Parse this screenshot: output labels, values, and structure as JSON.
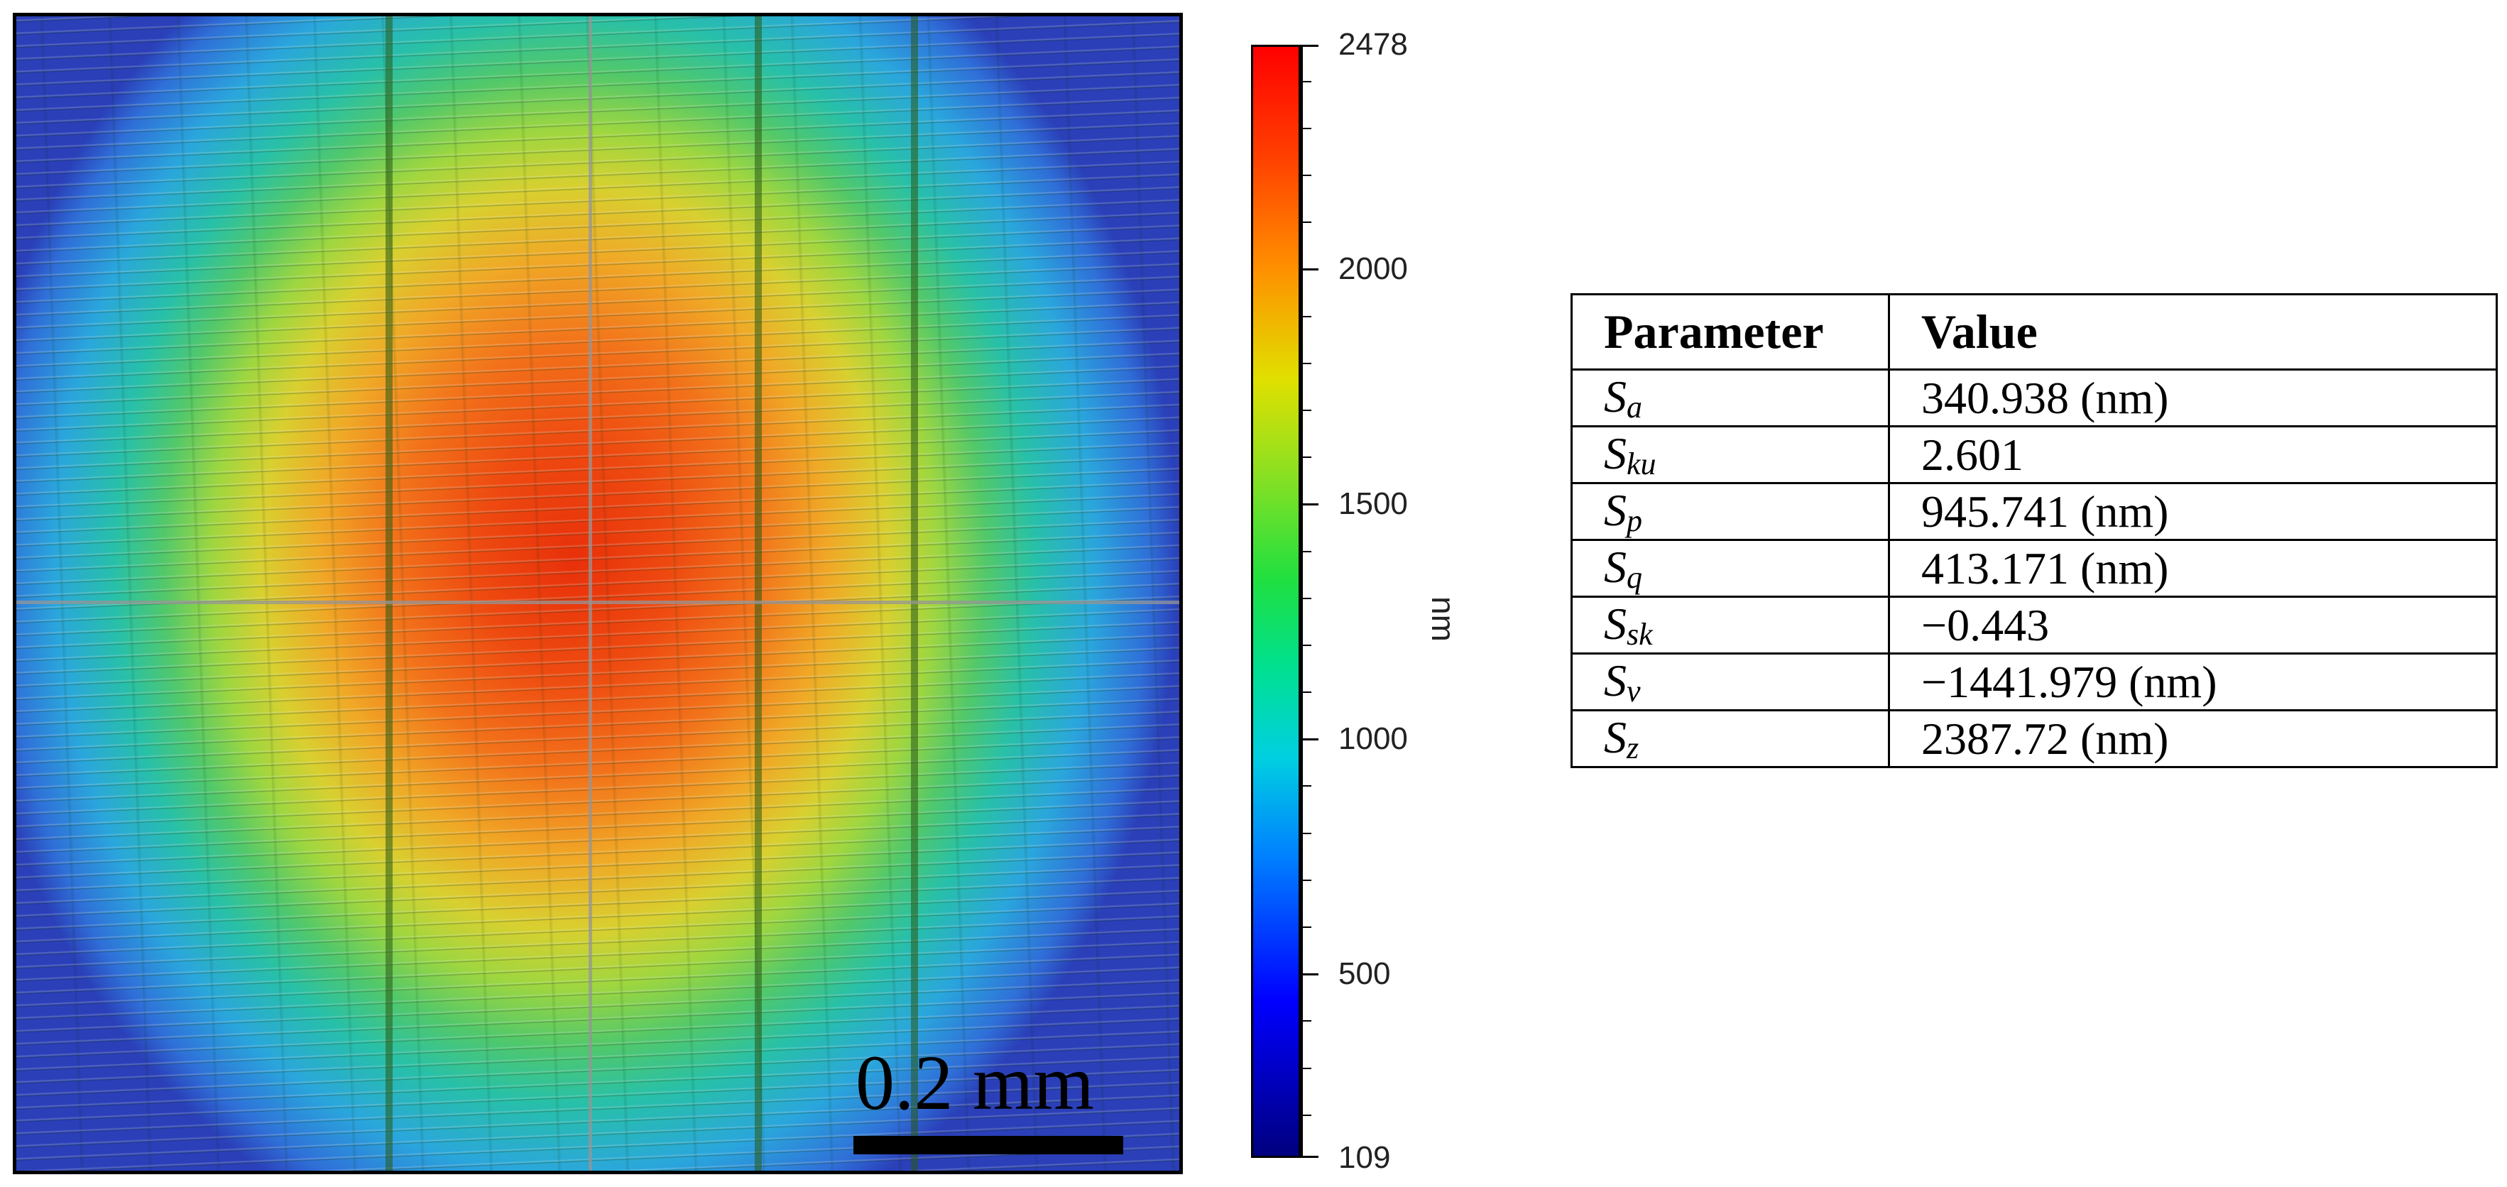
{
  "image": {
    "scale_bar_label": "0.2 mm"
  },
  "colorbar": {
    "unit": "nm",
    "min": 109,
    "max": 2478,
    "labels": [
      "2478",
      "2000",
      "1500",
      "1000",
      "500",
      "109"
    ],
    "colors": {
      "low": "#00007f",
      "mid": "#20e040",
      "high": "#ff0000"
    }
  },
  "table": {
    "headers": [
      "Parameter",
      "Value"
    ],
    "rows": [
      {
        "symbol": "S",
        "subscript": "a",
        "value": "340.938 (nm)"
      },
      {
        "symbol": "S",
        "subscript": "ku",
        "value": "2.601"
      },
      {
        "symbol": "S",
        "subscript": "p",
        "value": "945.741 (nm)"
      },
      {
        "symbol": "S",
        "subscript": "q",
        "value": "413.171 (nm)"
      },
      {
        "symbol": "S",
        "subscript": "sk",
        "value": "−0.443"
      },
      {
        "symbol": "S",
        "subscript": "v",
        "value": "−1441.979 (nm)"
      },
      {
        "symbol": "S",
        "subscript": "z",
        "value": "2387.72 (nm)"
      }
    ]
  }
}
